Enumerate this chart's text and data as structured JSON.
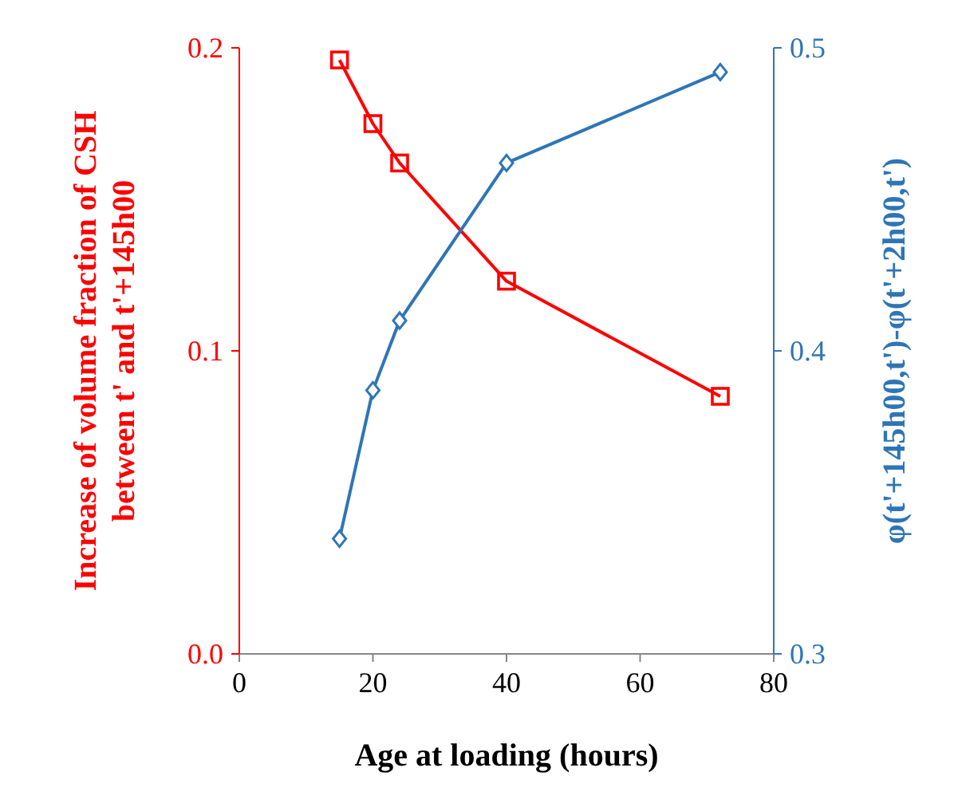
{
  "chart_data": {
    "type": "line",
    "xlabel": "Age at loading (hours)",
    "ylabel": "Increase of volume fraction of CSH\nbetween t' and t'+145h00",
    "y2label": "φ(t'+145h00,t')-φ(t'+2h00,t')",
    "xlim": [
      0,
      80
    ],
    "xticks": [
      0,
      20,
      40,
      60,
      80
    ],
    "ylim": [
      0,
      0.2
    ],
    "yticks": [
      {
        "value": 0,
        "label": "0.0"
      },
      {
        "value": 0.1,
        "label": "0.1"
      },
      {
        "value": 0.2,
        "label": "0.2"
      }
    ],
    "y2lim": [
      0.3,
      0.5
    ],
    "y2ticks": [
      0.3,
      0.4,
      0.5
    ],
    "grid": false,
    "series": [
      {
        "color": "#ff0000",
        "marker": "square",
        "x": [
          15,
          20,
          24,
          40,
          72
        ],
        "values": [
          0.196,
          0.175,
          0.162,
          0.123,
          0.085
        ]
      },
      {
        "color": "#2e75b6",
        "marker": "diamond",
        "axis": "y2",
        "x": [
          15,
          20,
          24,
          40,
          72
        ],
        "values": [
          0.338,
          0.387,
          0.41,
          0.462,
          0.492
        ]
      }
    ]
  }
}
